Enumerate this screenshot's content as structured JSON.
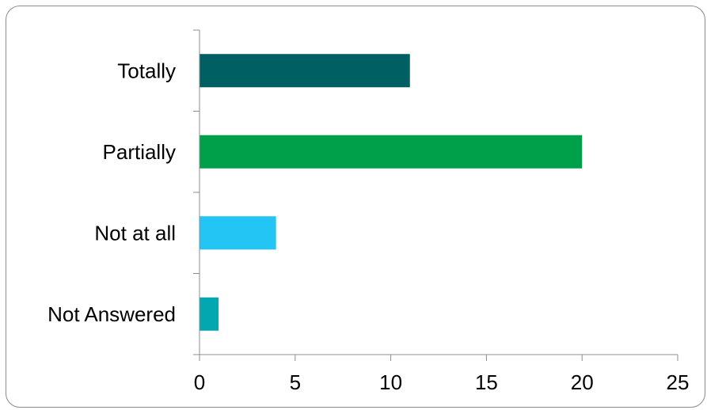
{
  "chart_data": {
    "type": "bar",
    "orientation": "horizontal",
    "categories": [
      "Totally",
      "Partially",
      "Not at all",
      "Not Answered"
    ],
    "values": [
      11,
      20,
      4,
      1
    ],
    "colors": [
      "#005f63",
      "#00a04a",
      "#22c5f4",
      "#03a7b0"
    ],
    "xlim": [
      0,
      25
    ],
    "x_ticks": [
      "0",
      "5",
      "10",
      "15",
      "20",
      "25"
    ],
    "title": "",
    "xlabel": "",
    "ylabel": "",
    "grid": false,
    "legend": "none"
  }
}
